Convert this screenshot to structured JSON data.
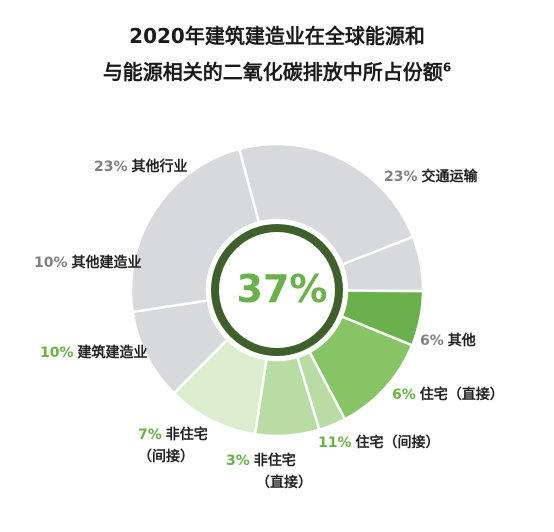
{
  "title": {
    "line1": "2020年建筑建造业在全球能源和",
    "line2": "与能源相关的二氧化碳排放中所占份额",
    "footnote": "6"
  },
  "center_value": "37%",
  "colors": {
    "gray": "#d8d9dc",
    "highlight_dark": "#6ab04c",
    "highlight_mid": "#86c465",
    "highlight_light": "#b9dba4",
    "highlight_pale": "#dbeccf",
    "ring": "#3f5f2c",
    "accent_text": "#6ab04c"
  },
  "chart_data": {
    "type": "pie",
    "title": "2020年建筑建造业在全球能源和与能源相关的二氧化碳排放中所占份额",
    "center_label": "37%",
    "slices": [
      {
        "label": "交通运输",
        "pct_text": "23%",
        "value": 23,
        "highlight": false
      },
      {
        "label": "其他",
        "pct_text": "6%",
        "value": 6,
        "highlight": false
      },
      {
        "label": "住宅（直接）",
        "pct_text": "6%",
        "value": 6,
        "highlight": true
      },
      {
        "label": "住宅（间接）",
        "pct_text": "11%",
        "value": 11,
        "highlight": true
      },
      {
        "label": "非住宅（直接）",
        "pct_text": "3%",
        "value": 3,
        "highlight": true
      },
      {
        "label": "非住宅（间接）",
        "pct_text": "7%",
        "value": 7,
        "highlight": true
      },
      {
        "label": "建筑建造业",
        "pct_text": "10%",
        "value": 10,
        "highlight": true
      },
      {
        "label": "其他建造业",
        "pct_text": "10%",
        "value": 10,
        "highlight": false
      },
      {
        "label": "其他行业",
        "pct_text": "23%",
        "value": 23,
        "highlight": false
      }
    ]
  },
  "labels": {
    "transport": {
      "pct": "23%",
      "name": "交通运输"
    },
    "other": {
      "pct": "6%",
      "name": "其他"
    },
    "res_direct": {
      "pct": "6%",
      "name": "住宅（直接）"
    },
    "res_indirect": {
      "pct": "11%",
      "name": "住宅（间接）"
    },
    "nonres_direct": {
      "pct": "3%",
      "name": "非住宅",
      "name2": "（直接）"
    },
    "nonres_indirect": {
      "pct": "7%",
      "name": "非住宅",
      "name2": "（间接）"
    },
    "bldg_construction": {
      "pct": "10%",
      "name": "建筑建造业"
    },
    "other_construction": {
      "pct": "10%",
      "name": "其他建造业"
    },
    "other_industry": {
      "pct": "23%",
      "name": "其他行业"
    }
  }
}
